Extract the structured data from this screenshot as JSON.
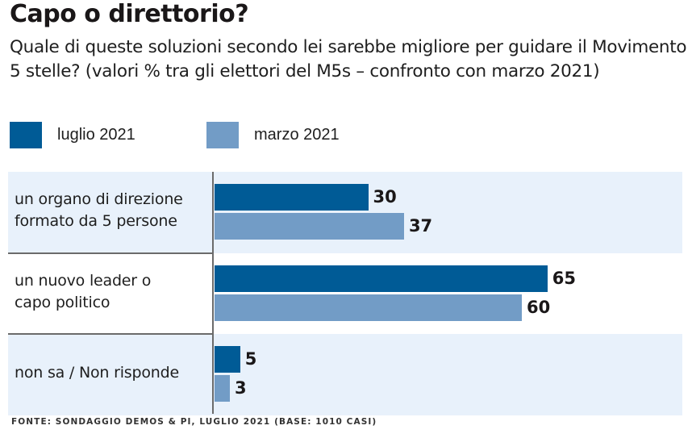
{
  "title": "Capo o direttorio?",
  "subtitle": "Quale di queste soluzioni secondo lei sarebbe migliore per guidare il Movimento 5 stelle? (valori % tra gli elettori del M5s – confronto con marzo 2021)",
  "source": "FONTE: SONDAGGIO DEMOS & PI, LUGLIO 2021 (BASE: 1010 CASI)",
  "colors": {
    "luglio": "#005b96",
    "marzo": "#729cc6",
    "band": "#e8f1fb"
  },
  "chart_data": {
    "type": "bar",
    "orientation": "horizontal",
    "title": "Capo o direttorio?",
    "subtitle": "Quale di queste soluzioni secondo lei sarebbe migliore per guidare il Movimento 5 stelle? (valori % tra gli elettori del M5s – confronto con marzo 2021)",
    "categories": [
      "un organo di direzione formato da 5 persone",
      "un nuovo leader o capo politico",
      "non sa / Non risponde"
    ],
    "category_lines": [
      [
        "un organo di direzione",
        "formato da 5 persone"
      ],
      [
        "un nuovo leader o",
        "capo politico"
      ],
      [
        "non sa / Non risponde"
      ]
    ],
    "series": [
      {
        "name": "luglio 2021",
        "color": "#005b96",
        "values": [
          30,
          65,
          5
        ]
      },
      {
        "name": "marzo 2021",
        "color": "#729cc6",
        "values": [
          37,
          60,
          3
        ]
      }
    ],
    "xlabel": "",
    "ylabel": "",
    "xlim": [
      0,
      100
    ],
    "legend": "top-left",
    "grid": false,
    "unit": "%"
  }
}
